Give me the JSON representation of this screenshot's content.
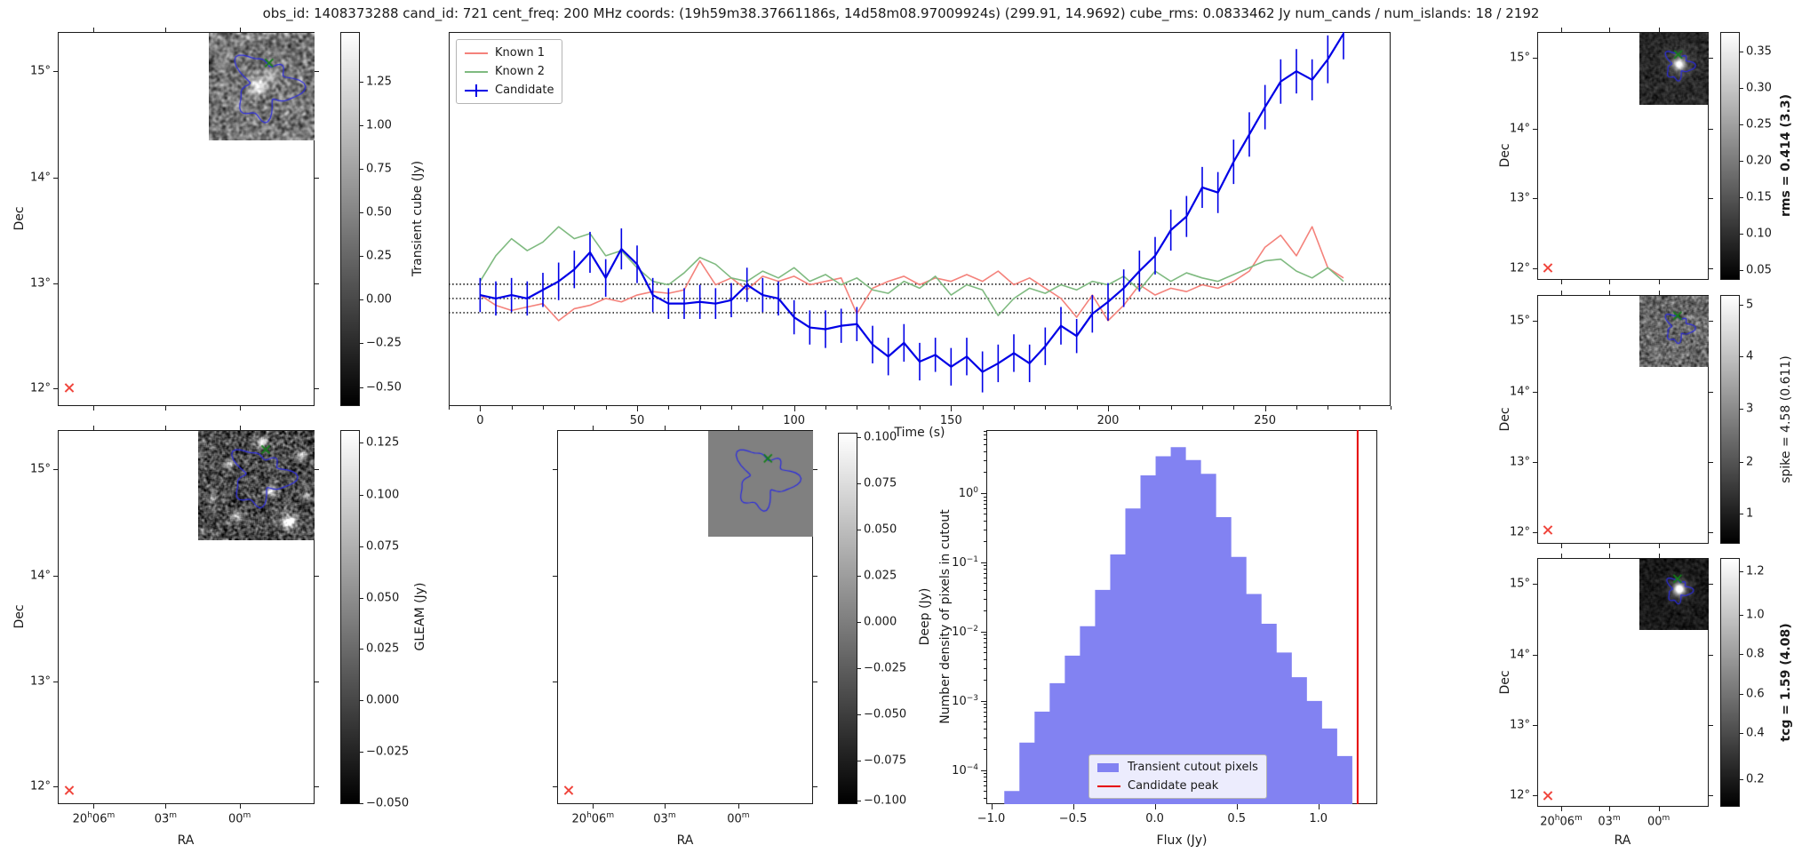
{
  "title": "obs_id: 1408373288 cand_id: 721 cent_freq: 200 MHz coords: (19h59m38.37661186s, 14d58m08.97009924s) (299.91, 14.9692) cube_rms: 0.0833462 Jy num_cands / num_islands: 18 / 2192",
  "shared": {
    "dec_label": "Dec",
    "ra_label": "RA",
    "dec_ticks": [
      "15°",
      "14°",
      "13°",
      "12°"
    ],
    "ra_ticks": [
      "20h06m",
      "03m",
      "00m"
    ]
  },
  "panels": {
    "transient_map": {
      "colorbar": {
        "label": "Transient cube (Jy)",
        "ticks": [
          "1.25",
          "1.00",
          "0.75",
          "0.50",
          "0.25",
          "0.00",
          "−0.25",
          "−0.50"
        ],
        "bold": false
      }
    },
    "gleam_map": {
      "colorbar": {
        "label": "GLEAM (Jy)",
        "ticks": [
          "0.125",
          "0.100",
          "0.075",
          "0.050",
          "0.025",
          "0.000",
          "−0.025",
          "−0.050"
        ],
        "bold": false
      }
    },
    "deep_map": {
      "colorbar": {
        "label": "Deep (Jy)",
        "ticks": [
          "0.100",
          "0.075",
          "0.050",
          "0.025",
          "0.000",
          "−0.025",
          "−0.050",
          "−0.075",
          "−0.100"
        ],
        "bold": false
      }
    },
    "rms_map": {
      "colorbar": {
        "label": "rms = 0.414 (3.3)",
        "ticks": [
          "0.35",
          "0.30",
          "0.25",
          "0.20",
          "0.15",
          "0.10",
          "0.05"
        ],
        "bold": true
      }
    },
    "spike_map": {
      "colorbar": {
        "label": "spike = 4.58 (0.611)",
        "ticks": [
          "5",
          "4",
          "3",
          "2",
          "1"
        ],
        "bold": false
      }
    },
    "tcg_map": {
      "colorbar": {
        "label": "tcg = 1.59 (4.08)",
        "ticks": [
          "1.2",
          "1.0",
          "0.8",
          "0.6",
          "0.4",
          "0.2"
        ],
        "bold": true
      }
    }
  },
  "colors": {
    "known1": "#f4827b",
    "known2": "#7fba80",
    "candidate": "#0000e6",
    "hist_bar": "#8282f2",
    "peak_line": "#e60000",
    "red_marker": "#f0453c",
    "green_marker": "#15801a",
    "contour": "#2a2ae0"
  },
  "chart_data": [
    {
      "type": "line",
      "name": "lightcurve",
      "xlabel": "Time (s)",
      "ylabel": "",
      "xlim": [
        -10,
        290
      ],
      "ylim": [
        -0.63,
        1.56
      ],
      "xticks": [
        0,
        50,
        100,
        150,
        200,
        250
      ],
      "minor_xtick_step": 10,
      "hlines": [
        0.0833462,
        0.0,
        -0.0833462
      ],
      "legend_position": "upper left",
      "x": [
        0,
        5,
        10,
        15,
        20,
        25,
        30,
        35,
        40,
        45,
        50,
        55,
        60,
        65,
        70,
        75,
        80,
        85,
        90,
        95,
        100,
        105,
        110,
        115,
        120,
        125,
        130,
        135,
        140,
        145,
        150,
        155,
        160,
        165,
        170,
        175,
        180,
        185,
        190,
        195,
        200,
        205,
        210,
        215,
        220,
        225,
        230,
        235,
        240,
        245,
        250,
        255,
        260,
        265,
        270,
        275
      ],
      "series": [
        {
          "name": "Known 1",
          "color": "#f4827b",
          "values": [
            0.02,
            -0.04,
            -0.07,
            -0.05,
            -0.03,
            -0.13,
            -0.06,
            -0.04,
            0.0,
            -0.02,
            0.02,
            0.04,
            0.03,
            0.05,
            0.22,
            0.08,
            0.12,
            0.05,
            0.13,
            0.1,
            0.13,
            0.08,
            0.1,
            0.12,
            -0.09,
            0.06,
            0.1,
            0.13,
            0.08,
            0.12,
            0.1,
            0.14,
            0.1,
            0.16,
            0.08,
            0.12,
            0.06,
            0.0,
            -0.11,
            0.02,
            -0.13,
            -0.04,
            0.08,
            0.02,
            0.06,
            0.04,
            0.08,
            0.06,
            0.1,
            0.16,
            0.3,
            0.37,
            0.25,
            0.42,
            0.18,
            0.12
          ]
        },
        {
          "name": "Known 2",
          "color": "#7fba80",
          "values": [
            0.1,
            0.25,
            0.35,
            0.28,
            0.33,
            0.42,
            0.35,
            0.38,
            0.25,
            0.28,
            0.18,
            0.1,
            0.08,
            0.15,
            0.24,
            0.2,
            0.12,
            0.1,
            0.16,
            0.12,
            0.18,
            0.1,
            0.14,
            0.08,
            0.12,
            0.05,
            0.03,
            0.1,
            0.06,
            0.13,
            0.02,
            0.08,
            0.05,
            -0.1,
            0.0,
            0.06,
            0.03,
            0.08,
            0.05,
            0.1,
            0.08,
            0.13,
            0.05,
            0.16,
            0.1,
            0.15,
            0.12,
            0.1,
            0.14,
            0.18,
            0.22,
            0.23,
            0.16,
            0.12,
            0.18,
            0.1
          ]
        },
        {
          "name": "Candidate",
          "color": "#0000e6",
          "values": [
            0.02,
            0.0,
            0.02,
            0.0,
            0.05,
            0.1,
            0.17,
            0.27,
            0.12,
            0.29,
            0.2,
            0.02,
            -0.03,
            -0.03,
            -0.02,
            -0.03,
            -0.01,
            0.08,
            0.02,
            0.0,
            -0.11,
            -0.17,
            -0.18,
            -0.16,
            -0.15,
            -0.27,
            -0.34,
            -0.26,
            -0.37,
            -0.33,
            -0.4,
            -0.34,
            -0.43,
            -0.38,
            -0.32,
            -0.38,
            -0.28,
            -0.16,
            -0.22,
            -0.09,
            -0.02,
            0.06,
            0.16,
            0.25,
            0.4,
            0.48,
            0.65,
            0.62,
            0.8,
            0.96,
            1.12,
            1.27,
            1.33,
            1.28,
            1.4,
            1.55
          ],
          "yerr": [
            0.1,
            0.1,
            0.1,
            0.1,
            0.1,
            0.11,
            0.11,
            0.12,
            0.11,
            0.12,
            0.11,
            0.1,
            0.09,
            0.09,
            0.1,
            0.09,
            0.1,
            0.1,
            0.1,
            0.1,
            0.1,
            0.1,
            0.11,
            0.1,
            0.1,
            0.11,
            0.11,
            0.11,
            0.11,
            0.1,
            0.11,
            0.11,
            0.12,
            0.11,
            0.11,
            0.11,
            0.11,
            0.11,
            0.1,
            0.11,
            0.11,
            0.11,
            0.12,
            0.11,
            0.12,
            0.12,
            0.12,
            0.12,
            0.13,
            0.13,
            0.13,
            0.13,
            0.13,
            0.12,
            0.14,
            0.15
          ]
        }
      ]
    },
    {
      "type": "bar",
      "name": "flux-histogram",
      "xlabel": "Flux (Jy)",
      "ylabel": "Number density of pixels in cutout",
      "xticks": [
        -1.0,
        -0.5,
        0.0,
        0.5,
        1.0
      ],
      "ytick_exponents": [
        0,
        -1,
        -2,
        -3,
        -4
      ],
      "xlim": [
        -1.03,
        1.36
      ],
      "ylog_lim": [
        -4.49,
        0.91
      ],
      "bin_start": -0.92,
      "bin_width": 0.0925,
      "densities": [
        5e-05,
        0.00025,
        0.0007,
        0.0018,
        0.0045,
        0.012,
        0.04,
        0.13,
        0.6,
        1.8,
        3.4,
        4.6,
        3.0,
        1.9,
        0.45,
        0.12,
        0.035,
        0.013,
        0.005,
        0.0022,
        0.001,
        0.0004,
        0.00016
      ],
      "candidate_peak": 1.24,
      "legend": [
        "Transient cutout pixels",
        "Candidate peak"
      ],
      "bar_color": "#8282f2",
      "peak_color": "#e60000"
    }
  ]
}
